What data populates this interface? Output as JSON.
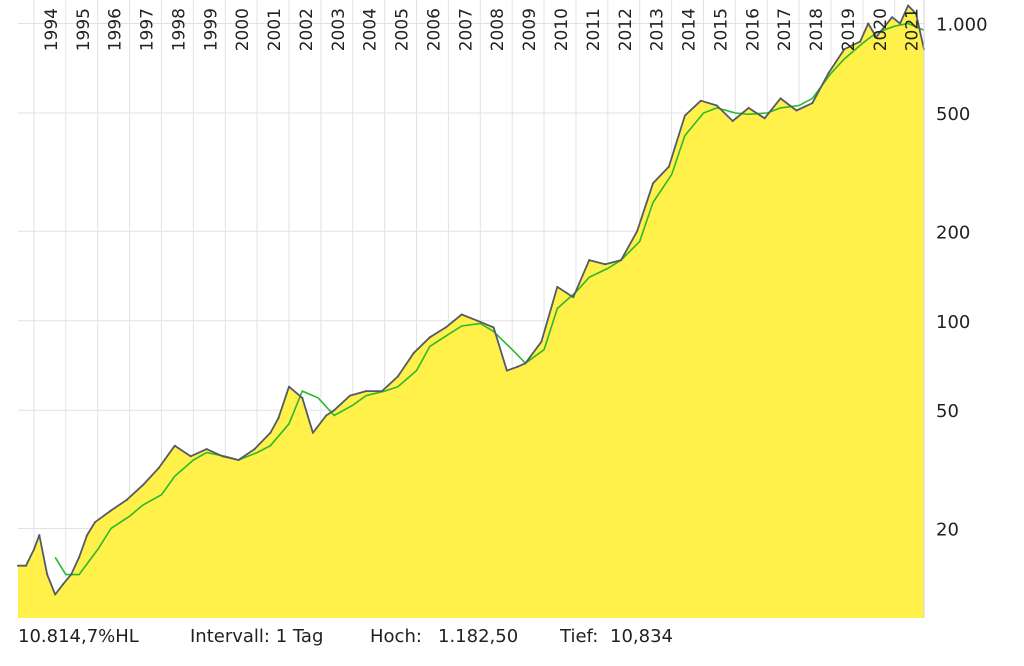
{
  "chart_data": {
    "type": "area",
    "y_scale": "log",
    "ylim": [
      10,
      1200
    ],
    "y_ticks": [
      20,
      50,
      100,
      200,
      500,
      1000
    ],
    "y_tick_labels": [
      "20",
      "50",
      "100",
      "200",
      "500",
      "1.000"
    ],
    "x_range": [
      "1993-07",
      "2021-12"
    ],
    "years": [
      "1994",
      "1995",
      "1996",
      "1997",
      "1998",
      "1999",
      "2000",
      "2001",
      "2002",
      "2003",
      "2004",
      "2005",
      "2006",
      "2007",
      "2008",
      "2009",
      "2010",
      "2011",
      "2012",
      "2013",
      "2014",
      "2015",
      "2016",
      "2017",
      "2018",
      "2019",
      "2020",
      "2021"
    ],
    "grid": true,
    "colors": {
      "area": "#fff04a",
      "price": "#555a66",
      "average": "#2db82d",
      "grid": "#e2e2e2"
    },
    "series": [
      {
        "x": [
          "1993-07",
          "1993-10",
          "1994-01",
          "1994-03",
          "1994-06",
          "1994-09",
          "1994-12",
          "1995-03",
          "1995-06",
          "1995-09",
          "1995-12",
          "1996-06",
          "1996-12",
          "1997-06",
          "1997-12",
          "1998-06",
          "1998-12",
          "1999-06",
          "1999-12",
          "2000-06",
          "2000-12",
          "2001-06",
          "2001-09",
          "2002-01",
          "2002-06",
          "2002-10",
          "2003-03",
          "2003-06",
          "2003-12",
          "2004-06",
          "2004-12",
          "2005-06",
          "2005-12",
          "2006-06",
          "2006-12",
          "2007-06",
          "2007-12",
          "2008-06",
          "2008-11",
          "2009-03",
          "2009-06",
          "2009-12",
          "2010-06",
          "2010-12",
          "2011-06",
          "2011-12",
          "2012-06",
          "2012-12",
          "2013-06",
          "2013-12",
          "2014-06",
          "2014-12",
          "2015-06",
          "2015-12",
          "2016-06",
          "2016-12",
          "2017-06",
          "2017-12",
          "2018-06",
          "2018-12",
          "2019-06",
          "2019-12",
          "2020-03",
          "2020-06",
          "2020-12",
          "2021-03",
          "2021-06",
          "2021-09",
          "2021-12"
        ],
        "values": [
          15,
          15,
          17,
          19,
          14,
          12,
          13,
          14,
          16,
          19,
          21,
          23,
          25,
          28,
          32,
          38,
          35,
          37,
          35,
          34,
          37,
          42,
          47,
          60,
          55,
          42,
          48,
          50,
          56,
          58,
          58,
          65,
          78,
          88,
          95,
          105,
          100,
          95,
          68,
          70,
          72,
          85,
          130,
          120,
          160,
          155,
          160,
          200,
          290,
          330,
          490,
          550,
          530,
          470,
          520,
          480,
          560,
          510,
          540,
          680,
          820,
          870,
          1000,
          900,
          1050,
          1000,
          1150,
          1080,
          820
        ]
      },
      {
        "x": [
          "1994-09",
          "1995-01",
          "1995-06",
          "1996-01",
          "1996-06",
          "1997-01",
          "1997-06",
          "1998-01",
          "1998-06",
          "1999-01",
          "1999-06",
          "2000-01",
          "2000-06",
          "2001-01",
          "2001-06",
          "2002-01",
          "2002-06",
          "2002-12",
          "2003-06",
          "2004-01",
          "2004-06",
          "2005-01",
          "2005-06",
          "2006-01",
          "2006-06",
          "2007-01",
          "2007-06",
          "2008-01",
          "2008-06",
          "2009-01",
          "2009-06",
          "2010-01",
          "2010-06",
          "2011-01",
          "2011-06",
          "2012-01",
          "2012-06",
          "2013-01",
          "2013-06",
          "2014-01",
          "2014-06",
          "2015-01",
          "2015-06",
          "2016-01",
          "2016-06",
          "2017-01",
          "2017-06",
          "2018-01",
          "2018-06",
          "2019-01",
          "2019-06",
          "2020-01",
          "2020-06",
          "2021-01",
          "2021-06",
          "2021-12"
        ],
        "values": [
          16,
          14,
          14,
          17,
          20,
          22,
          24,
          26,
          30,
          34,
          36,
          35,
          34,
          36,
          38,
          45,
          58,
          55,
          48,
          52,
          56,
          58,
          60,
          68,
          82,
          90,
          96,
          98,
          92,
          80,
          72,
          80,
          110,
          125,
          140,
          150,
          160,
          185,
          250,
          310,
          420,
          500,
          520,
          500,
          495,
          500,
          520,
          530,
          560,
          680,
          760,
          860,
          930,
          980,
          1000,
          950
        ]
      }
    ]
  },
  "footer": {
    "change": "10.814,7%HL",
    "interval": "Intervall: 1 Tag",
    "high_label": "Hoch:",
    "high_value": "1.182,50",
    "low_label": "Tief:",
    "low_value": "10,834"
  }
}
